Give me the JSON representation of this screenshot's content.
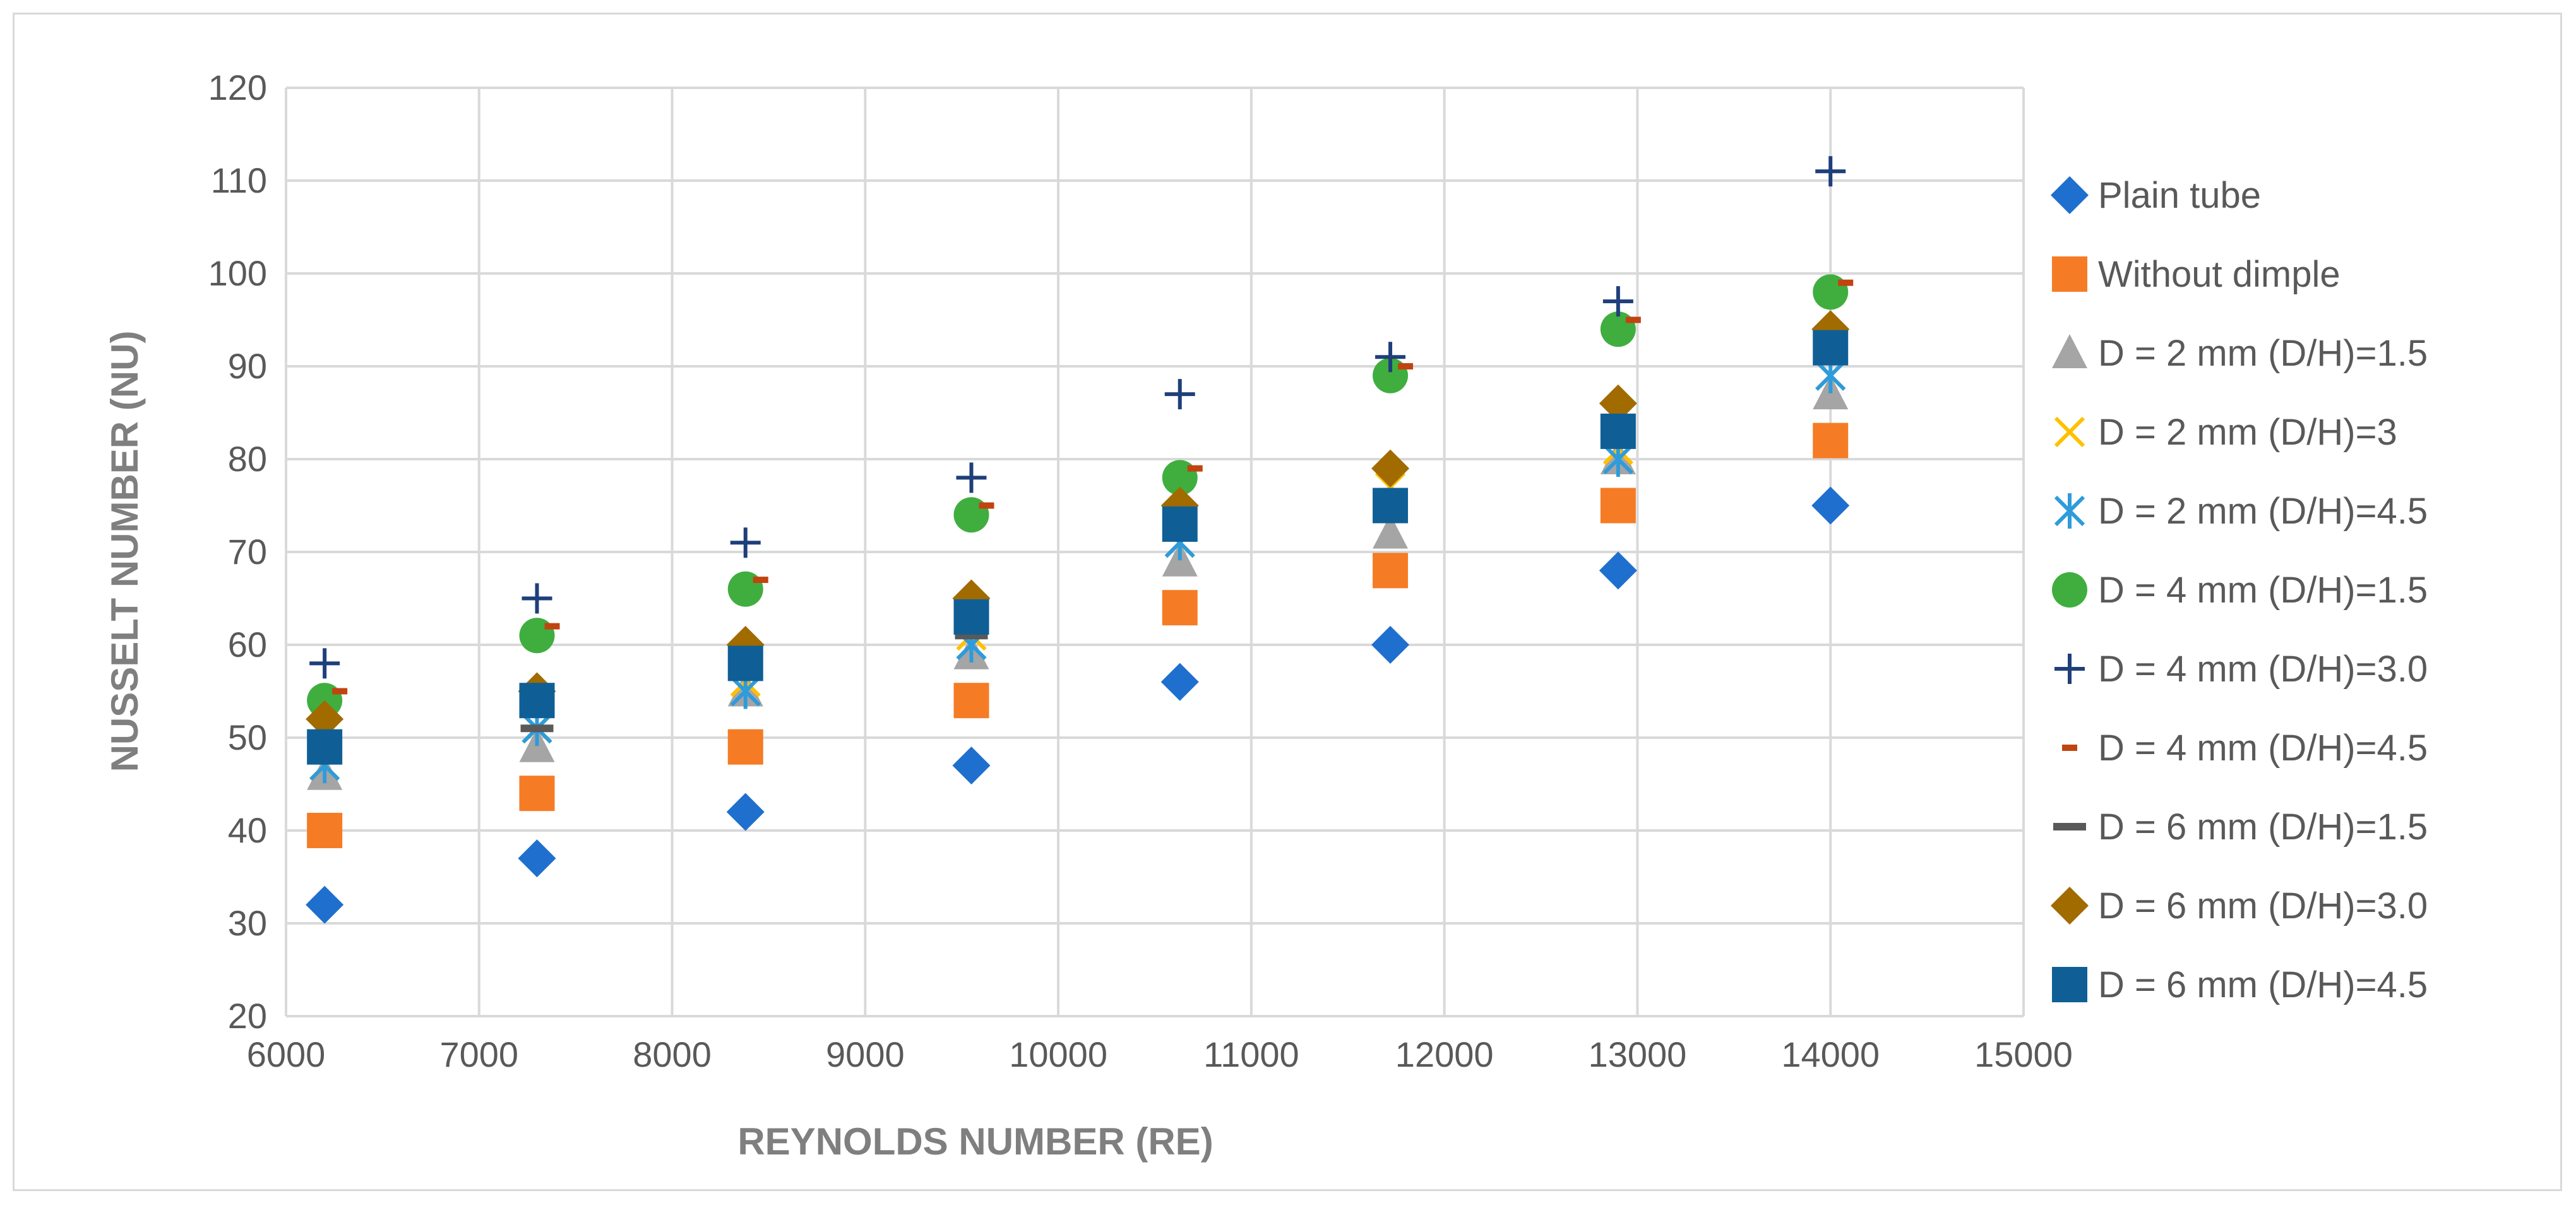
{
  "chart_data": {
    "type": "scatter",
    "title": "",
    "xlabel": "REYNOLDS NUMBER (RE)",
    "ylabel": "NUSSELT NUMBER (NU)",
    "xlim": [
      6000,
      15000
    ],
    "ylim": [
      20,
      120
    ],
    "x_ticks": [
      6000,
      7000,
      8000,
      9000,
      10000,
      11000,
      12000,
      13000,
      14000,
      15000
    ],
    "y_ticks": [
      20,
      30,
      40,
      50,
      60,
      70,
      80,
      90,
      100,
      110,
      120
    ],
    "grid": true,
    "legend_position": "right",
    "x": [
      6200,
      7300,
      8380,
      9550,
      10630,
      11720,
      12900,
      14000
    ],
    "series": [
      {
        "name": "Plain tube",
        "marker": "diamond",
        "color": "#1f6fce",
        "values": [
          32,
          37,
          42,
          47,
          56,
          60,
          68,
          75
        ]
      },
      {
        "name": "Without dimple",
        "marker": "square",
        "color": "#f57c25",
        "values": [
          40,
          44,
          49,
          54,
          64,
          68,
          75,
          82
        ]
      },
      {
        "name": "D = 2 mm (D/H)=1.5",
        "marker": "triangle",
        "color": "#a5a5a5",
        "values": [
          46,
          49,
          55,
          59,
          69,
          72,
          80,
          87
        ]
      },
      {
        "name": "D = 2 mm (D/H)=3",
        "marker": "x",
        "color": "#ffc000",
        "values": [
          47,
          51,
          56,
          61,
          71,
          77,
          81,
          89
        ]
      },
      {
        "name": "D = 2 mm (D/H)=4.5",
        "marker": "star",
        "color": "#2e9bdb",
        "values": [
          47,
          51,
          55,
          60,
          71,
          75,
          80,
          89
        ]
      },
      {
        "name": "D = 4 mm (D/H)=1.5",
        "marker": "circle",
        "color": "#3fae3f",
        "values": [
          54,
          61,
          66,
          74,
          78,
          89,
          94,
          98
        ]
      },
      {
        "name": "D = 4 mm (D/H)=3.0",
        "marker": "plus",
        "color": "#1f3f7a",
        "values": [
          58,
          65,
          71,
          78,
          87,
          91,
          97,
          111
        ]
      },
      {
        "name": "D = 4 mm (D/H)=4.5",
        "marker": "dash",
        "color": "#c0440f",
        "values": [
          55,
          62,
          67,
          75,
          79,
          90,
          95,
          99
        ]
      },
      {
        "name": "D = 6 mm (D/H)=1.5",
        "marker": "bar",
        "color": "#595959",
        "values": [
          48,
          51,
          57,
          61,
          72,
          75,
          83,
          91
        ]
      },
      {
        "name": "D = 6 mm (D/H)=3.0",
        "marker": "diamond",
        "color": "#a16b00",
        "values": [
          52,
          55,
          60,
          65,
          75,
          79,
          86,
          94
        ]
      },
      {
        "name": "D = 6 mm (D/H)=4.5",
        "marker": "square",
        "color": "#0f5f96",
        "values": [
          49,
          54,
          58,
          63,
          73,
          75,
          83,
          92
        ]
      }
    ]
  }
}
